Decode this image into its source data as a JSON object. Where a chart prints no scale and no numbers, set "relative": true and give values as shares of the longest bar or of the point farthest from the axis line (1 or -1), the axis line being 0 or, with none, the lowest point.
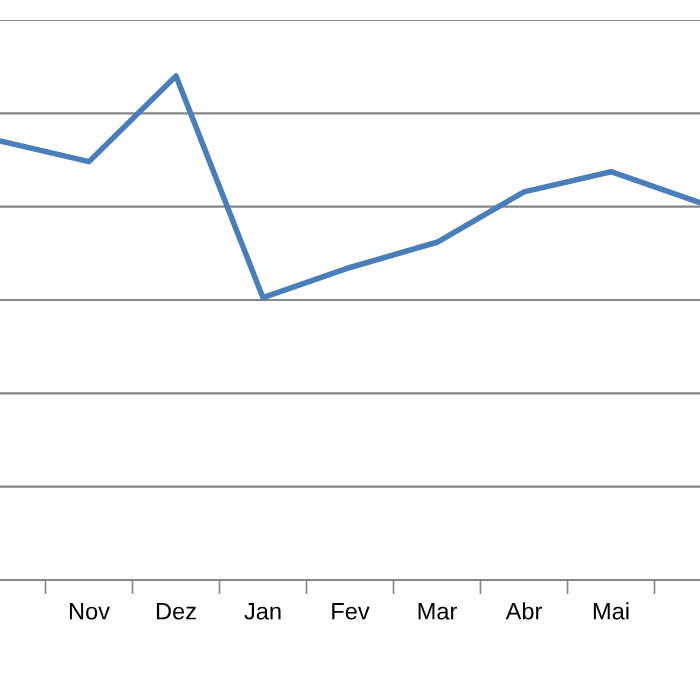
{
  "chart_data": {
    "type": "line",
    "relative": true,
    "categories": [
      null,
      "Nov",
      "Dez",
      "Jan",
      "Fev",
      "Mar",
      "Abr",
      "Mai",
      null
    ],
    "series": [
      {
        "color": "#4a7ebb",
        "values": [
          0.87,
          0.83,
          1.0,
          0.56,
          0.62,
          0.67,
          0.77,
          0.81,
          0.75
        ]
      }
    ],
    "grid": "y",
    "marker": "none",
    "line_style": "solid",
    "legend": false
  }
}
